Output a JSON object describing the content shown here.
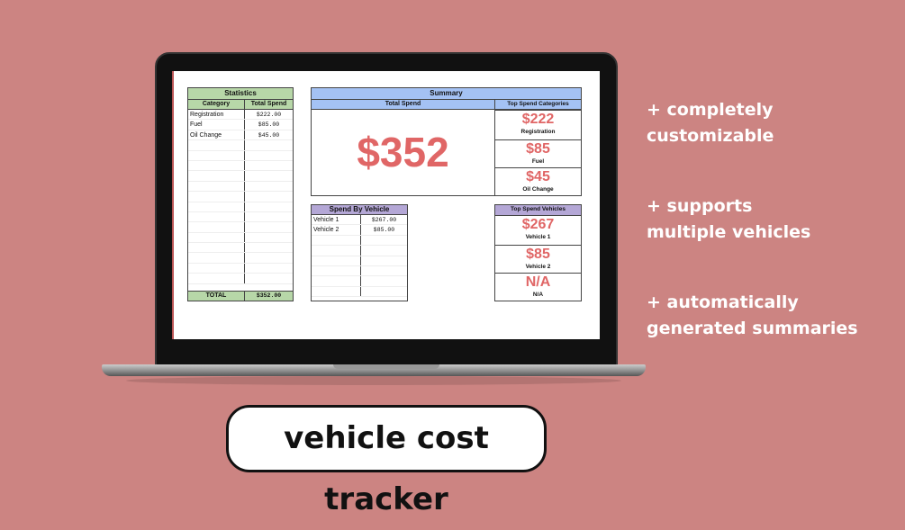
{
  "statistics": {
    "title": "Statistics",
    "col1": "Category",
    "col2": "Total Spend",
    "rows": [
      {
        "category": "Registration",
        "spend": "$222.00"
      },
      {
        "category": "Fuel",
        "spend": "$85.00"
      },
      {
        "category": "Oil Change",
        "spend": "$45.00"
      }
    ],
    "total_label": "TOTAL",
    "total_value": "$352.00"
  },
  "summary": {
    "title": "Summary",
    "total_header": "Total Spend",
    "total_value": "$352",
    "top_header": "Top Spend Categories",
    "top": [
      {
        "value": "$222",
        "label": "Registration"
      },
      {
        "value": "$85",
        "label": "Fuel"
      },
      {
        "value": "$45",
        "label": "Oil Change"
      }
    ]
  },
  "by_vehicle": {
    "title": "Spend By Vehicle",
    "rows": [
      {
        "vehicle": "Vehicle 1",
        "spend": "$267.00"
      },
      {
        "vehicle": "Vehicle 2",
        "spend": "$85.00"
      }
    ]
  },
  "top_vehicles": {
    "title": "Top Spend Vehicles",
    "items": [
      {
        "value": "$267",
        "label": "Vehicle 1"
      },
      {
        "value": "$85",
        "label": "Vehicle 2"
      },
      {
        "value": "N/A",
        "label": "N/A"
      }
    ]
  },
  "features": [
    {
      "line1": "+ completely",
      "line2": "customizable"
    },
    {
      "line1": "+ supports",
      "line2": "multiple vehicles"
    },
    {
      "line1": "+ automatically",
      "line2": "generated summaries"
    }
  ],
  "product_title": "vehicle cost tracker",
  "colors": {
    "background": "#cc8482",
    "accent": "#e06666",
    "green_header": "#b7d7a8",
    "blue_header": "#a4c2f4",
    "purple_header": "#b4a7d6"
  }
}
